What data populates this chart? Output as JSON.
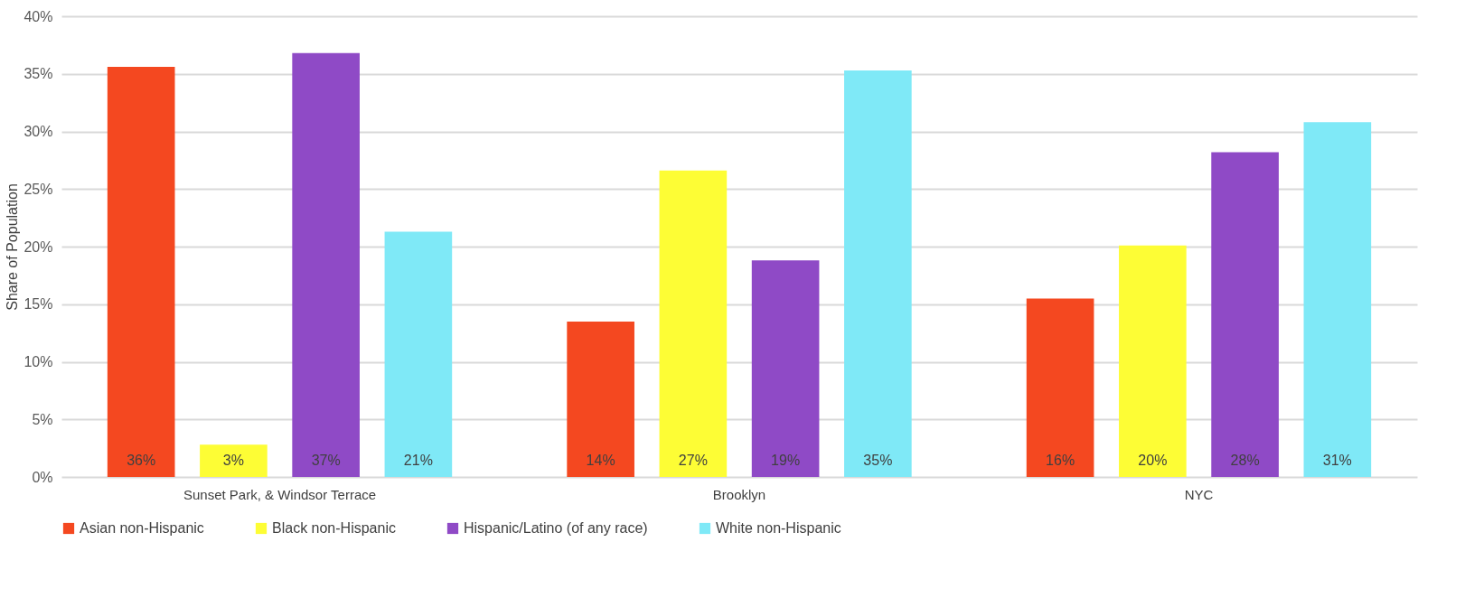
{
  "chart_data": {
    "type": "bar",
    "ylabel": "Share of Population",
    "categories": [
      "Sunset Park, & Windsor Terrace",
      "Brooklyn",
      "NYC"
    ],
    "series": [
      {
        "name": "Asian non-Hispanic",
        "color": "#f44820",
        "values": [
          35.6,
          13.5,
          15.5
        ],
        "value_labels": [
          "36%",
          "14%",
          "16%"
        ]
      },
      {
        "name": "Black non-Hispanic",
        "color": "#fdfd35",
        "values": [
          2.8,
          26.6,
          20.1
        ],
        "value_labels": [
          "3%",
          "27%",
          "20%"
        ]
      },
      {
        "name": "Hispanic/Latino (of any race)",
        "color": "#8f4ac6",
        "values": [
          36.8,
          18.8,
          28.2
        ],
        "value_labels": [
          "37%",
          "19%",
          "28%"
        ]
      },
      {
        "name": "White non-Hispanic",
        "color": "#7fe9f7",
        "values": [
          21.3,
          35.3,
          30.8
        ],
        "value_labels": [
          "21%",
          "35%",
          "31%"
        ]
      }
    ],
    "ylim": [
      0,
      40
    ],
    "yticks": [
      {
        "value": 0,
        "label": "0%"
      },
      {
        "value": 5,
        "label": "5%"
      },
      {
        "value": 10,
        "label": "10%"
      },
      {
        "value": 15,
        "label": "15%"
      },
      {
        "value": 20,
        "label": "20%"
      },
      {
        "value": 25,
        "label": "25%"
      },
      {
        "value": 30,
        "label": "30%"
      },
      {
        "value": 35,
        "label": "35%"
      },
      {
        "value": 40,
        "label": "40%"
      }
    ],
    "grid": "y",
    "legend": "bottom"
  }
}
